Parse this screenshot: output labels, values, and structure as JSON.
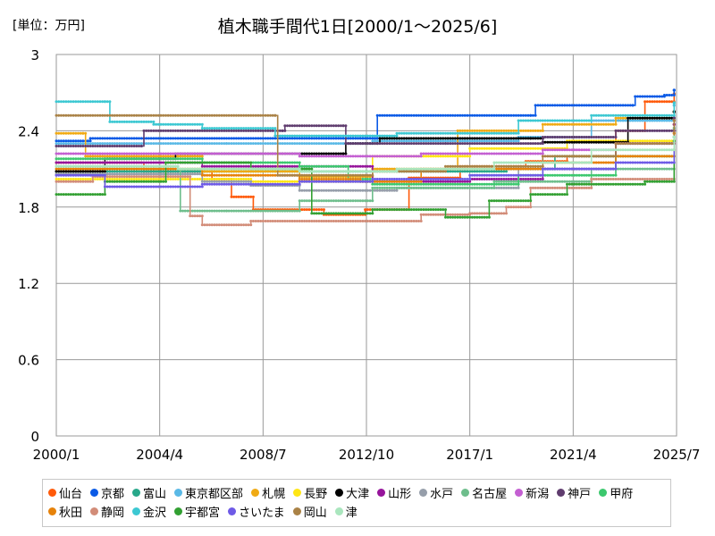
{
  "unit_label": "[単位：万円]",
  "chart_data": {
    "type": "line",
    "title": "植木職手間代1日[2000/1～2025/6]",
    "xlabel": "",
    "ylabel": "",
    "x_ticks": [
      "2000/1",
      "2004/4",
      "2008/7",
      "2012/10",
      "2017/1",
      "2021/4",
      "2025/7"
    ],
    "x_range": [
      2000.0,
      2025.5
    ],
    "y_ticks": [
      "0",
      "0.6",
      "1.2",
      "1.8",
      "2.4",
      "3"
    ],
    "ylim": [
      0,
      3
    ],
    "grid": true,
    "series": [
      {
        "name": "仙台",
        "color": "#ff5a0a",
        "points": [
          [
            2000.0,
            2.15
          ],
          [
            2003.5,
            2.15
          ],
          [
            2003.6,
            2.08
          ],
          [
            2006.4,
            2.02
          ],
          [
            2007.2,
            1.88
          ],
          [
            2008.1,
            1.78
          ],
          [
            2011.0,
            1.74
          ],
          [
            2012.7,
            1.78
          ],
          [
            2014.5,
            2.03
          ],
          [
            2016.6,
            2.12
          ],
          [
            2019.3,
            2.16
          ],
          [
            2021.0,
            2.2
          ],
          [
            2023.0,
            2.4
          ],
          [
            2024.2,
            2.63
          ],
          [
            2025.4,
            2.69
          ]
        ]
      },
      {
        "name": "京都",
        "color": "#0a5ae6",
        "points": [
          [
            2000.0,
            2.32
          ],
          [
            2001.3,
            2.32
          ],
          [
            2001.4,
            2.34
          ],
          [
            2013.1,
            2.34
          ],
          [
            2013.2,
            2.52
          ],
          [
            2019.5,
            2.52
          ],
          [
            2019.7,
            2.6
          ],
          [
            2023.7,
            2.6
          ],
          [
            2023.8,
            2.67
          ],
          [
            2025.0,
            2.68
          ],
          [
            2025.4,
            2.72
          ]
        ]
      },
      {
        "name": "富山",
        "color": "#28a88a",
        "points": [
          [
            2000.0,
            2.08
          ],
          [
            2006.0,
            2.08
          ],
          [
            2014.0,
            2.08
          ],
          [
            2018.5,
            2.1
          ],
          [
            2020.5,
            2.2
          ],
          [
            2023.0,
            2.3
          ],
          [
            2025.4,
            2.55
          ]
        ]
      },
      {
        "name": "東京都区部",
        "color": "#5ab9e6",
        "points": [
          [
            2000.0,
            2.3
          ],
          [
            2007.0,
            2.3
          ],
          [
            2013.0,
            2.32
          ],
          [
            2019.0,
            2.35
          ],
          [
            2022.0,
            2.48
          ],
          [
            2025.4,
            2.6
          ]
        ]
      },
      {
        "name": "札幌",
        "color": "#f0aa14",
        "points": [
          [
            2000.0,
            2.38
          ],
          [
            2001.1,
            2.38
          ],
          [
            2001.2,
            2.2
          ],
          [
            2004.0,
            2.2
          ],
          [
            2006.0,
            2.08
          ],
          [
            2010.0,
            2.04
          ],
          [
            2013.0,
            2.1
          ],
          [
            2016.5,
            2.4
          ],
          [
            2020.0,
            2.45
          ],
          [
            2023.0,
            2.5
          ],
          [
            2025.4,
            2.55
          ]
        ]
      },
      {
        "name": "長野",
        "color": "#ffe614",
        "points": [
          [
            2000.0,
            2.02
          ],
          [
            2004.0,
            2.02
          ],
          [
            2008.0,
            2.0
          ],
          [
            2012.0,
            2.0
          ],
          [
            2013.0,
            2.2
          ],
          [
            2017.0,
            2.26
          ],
          [
            2021.0,
            2.32
          ],
          [
            2025.4,
            2.45
          ]
        ]
      },
      {
        "name": "大津",
        "color": "#000000",
        "points": [
          [
            2000.0,
            2.08
          ],
          [
            2002.0,
            2.18
          ],
          [
            2004.9,
            2.22
          ],
          [
            2011.8,
            2.22
          ],
          [
            2011.9,
            2.3
          ],
          [
            2013.2,
            2.3
          ],
          [
            2013.3,
            2.34
          ],
          [
            2019.5,
            2.34
          ],
          [
            2020.0,
            2.31
          ],
          [
            2023.5,
            2.5
          ],
          [
            2025.4,
            2.55
          ]
        ]
      },
      {
        "name": "山形",
        "color": "#96149b",
        "points": [
          [
            2000.0,
            2.15
          ],
          [
            2006.0,
            2.12
          ],
          [
            2013.0,
            2.0
          ],
          [
            2017.0,
            2.02
          ],
          [
            2020.0,
            2.1
          ],
          [
            2023.0,
            2.3
          ],
          [
            2025.4,
            2.45
          ]
        ]
      },
      {
        "name": "水戸",
        "color": "#969eaa",
        "points": [
          [
            2000.0,
            2.06
          ],
          [
            2006.0,
            2.0
          ],
          [
            2008.0,
            1.97
          ],
          [
            2010.0,
            1.93
          ],
          [
            2014.0,
            1.95
          ],
          [
            2019.0,
            2.1
          ],
          [
            2023.0,
            2.2
          ],
          [
            2025.4,
            2.35
          ]
        ]
      },
      {
        "name": "名古屋",
        "color": "#6ebe8c",
        "points": [
          [
            2000.0,
            2.12
          ],
          [
            2005.0,
            2.1
          ],
          [
            2005.1,
            1.77
          ],
          [
            2007.0,
            1.77
          ],
          [
            2010.0,
            1.85
          ],
          [
            2013.0,
            1.95
          ],
          [
            2018.0,
            2.0
          ],
          [
            2022.0,
            2.1
          ],
          [
            2025.4,
            2.42
          ]
        ]
      },
      {
        "name": "新潟",
        "color": "#c45fd2",
        "points": [
          [
            2000.0,
            2.22
          ],
          [
            2005.0,
            2.22
          ],
          [
            2010.0,
            2.2
          ],
          [
            2015.0,
            2.22
          ],
          [
            2020.0,
            2.25
          ],
          [
            2023.0,
            2.3
          ],
          [
            2025.4,
            2.4
          ]
        ]
      },
      {
        "name": "神戸",
        "color": "#5f3c6e",
        "points": [
          [
            2000.0,
            2.28
          ],
          [
            2003.5,
            2.28
          ],
          [
            2003.6,
            2.4
          ],
          [
            2009.3,
            2.4
          ],
          [
            2009.4,
            2.44
          ],
          [
            2011.8,
            2.44
          ],
          [
            2011.9,
            2.3
          ],
          [
            2016.0,
            2.3
          ],
          [
            2020.0,
            2.35
          ],
          [
            2023.0,
            2.4
          ],
          [
            2025.4,
            2.5
          ]
        ]
      },
      {
        "name": "甲府",
        "color": "#3cc86e",
        "points": [
          [
            2000.0,
            2.18
          ],
          [
            2006.0,
            2.15
          ],
          [
            2010.0,
            2.12
          ],
          [
            2012.0,
            2.02
          ],
          [
            2013.0,
            1.98
          ],
          [
            2016.0,
            1.98
          ],
          [
            2019.0,
            2.05
          ],
          [
            2023.0,
            2.2
          ],
          [
            2025.4,
            2.35
          ]
        ]
      },
      {
        "name": "秋田",
        "color": "#e6820a",
        "points": [
          [
            2000.0,
            2.1
          ],
          [
            2004.0,
            2.1
          ],
          [
            2006.0,
            2.05
          ],
          [
            2010.0,
            2.02
          ],
          [
            2012.5,
            2.0
          ],
          [
            2015.0,
            2.1
          ],
          [
            2020.0,
            2.15
          ],
          [
            2023.0,
            2.2
          ],
          [
            2025.4,
            2.38
          ]
        ]
      },
      {
        "name": "静岡",
        "color": "#d28c78",
        "points": [
          [
            2000.0,
            2.0
          ],
          [
            2001.5,
            2.04
          ],
          [
            2003.0,
            2.04
          ],
          [
            2005.5,
            1.73
          ],
          [
            2006.0,
            1.66
          ],
          [
            2008.0,
            1.69
          ],
          [
            2015.0,
            1.74
          ],
          [
            2017.0,
            1.75
          ],
          [
            2018.5,
            1.8
          ],
          [
            2019.5,
            1.95
          ],
          [
            2022.0,
            2.02
          ],
          [
            2025.4,
            2.25
          ]
        ]
      },
      {
        "name": "金沢",
        "color": "#3cc8d2",
        "points": [
          [
            2000.0,
            2.63
          ],
          [
            2002.0,
            2.63
          ],
          [
            2002.2,
            2.47
          ],
          [
            2004.0,
            2.45
          ],
          [
            2006.0,
            2.42
          ],
          [
            2009.0,
            2.36
          ],
          [
            2014.0,
            2.38
          ],
          [
            2019.0,
            2.48
          ],
          [
            2022.0,
            2.52
          ],
          [
            2025.4,
            2.62
          ]
        ]
      },
      {
        "name": "宇都宮",
        "color": "#32a032",
        "points": [
          [
            2000.0,
            1.9
          ],
          [
            2001.8,
            1.9
          ],
          [
            2002.0,
            2.0
          ],
          [
            2004.5,
            2.15
          ],
          [
            2008.0,
            2.1
          ],
          [
            2010.5,
            1.75
          ],
          [
            2013.0,
            1.78
          ],
          [
            2016.0,
            1.72
          ],
          [
            2017.8,
            1.85
          ],
          [
            2019.5,
            1.9
          ],
          [
            2021.0,
            1.98
          ],
          [
            2024.2,
            2.0
          ],
          [
            2025.4,
            2.32
          ]
        ]
      },
      {
        "name": "さいたま",
        "color": "#6e5ae6",
        "points": [
          [
            2000.0,
            2.05
          ],
          [
            2002.0,
            1.96
          ],
          [
            2006.0,
            1.98
          ],
          [
            2010.0,
            2.0
          ],
          [
            2013.0,
            2.02
          ],
          [
            2017.0,
            2.05
          ],
          [
            2020.0,
            2.1
          ],
          [
            2023.0,
            2.15
          ],
          [
            2025.4,
            2.3
          ]
        ]
      },
      {
        "name": "岡山",
        "color": "#aa8246",
        "points": [
          [
            2000.0,
            2.52
          ],
          [
            2009.0,
            2.52
          ],
          [
            2009.1,
            2.05
          ],
          [
            2013.0,
            2.08
          ],
          [
            2016.0,
            2.12
          ],
          [
            2020.0,
            2.2
          ],
          [
            2023.0,
            2.3
          ],
          [
            2025.4,
            2.48
          ]
        ]
      },
      {
        "name": "津",
        "color": "#aae6be",
        "points": [
          [
            2000.0,
            2.12
          ],
          [
            2005.0,
            2.1
          ],
          [
            2010.0,
            2.08
          ],
          [
            2014.0,
            2.1
          ],
          [
            2018.0,
            2.15
          ],
          [
            2022.0,
            2.25
          ],
          [
            2025.4,
            2.35
          ]
        ]
      }
    ]
  }
}
